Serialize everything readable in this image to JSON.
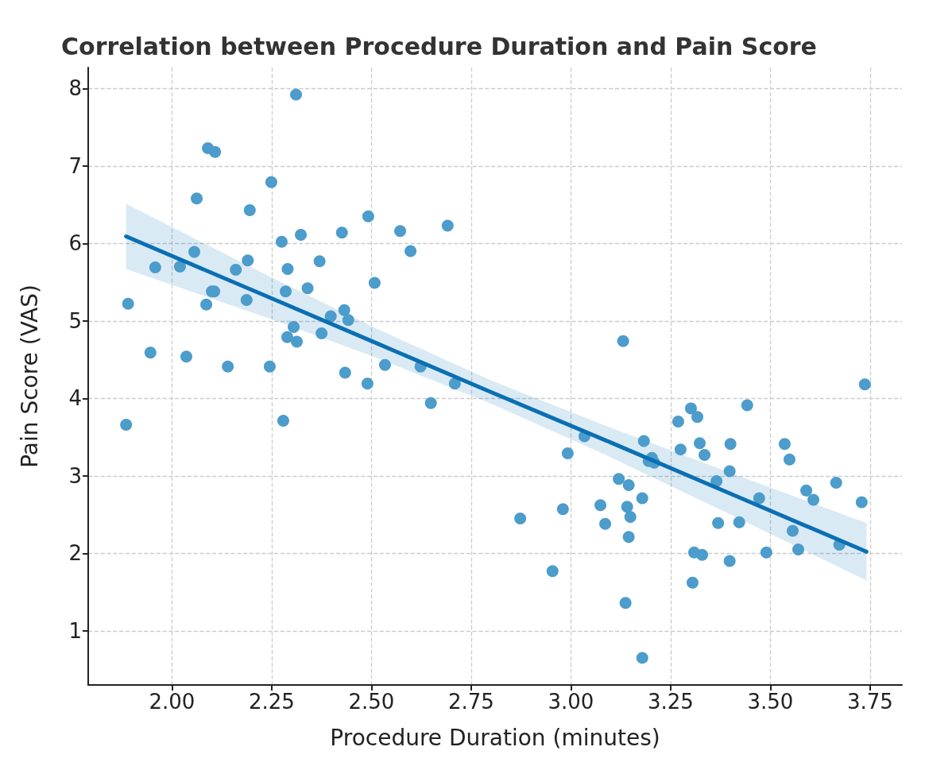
{
  "chart_data": {
    "type": "scatter",
    "title": "Correlation between Procedure Duration and Pain Score",
    "xlabel": "Procedure Duration (minutes)",
    "ylabel": "Pain Score (VAS)",
    "xlim": [
      1.79,
      3.83
    ],
    "ylim": [
      0.3,
      8.27
    ],
    "xticks": [
      {
        "value": 2,
        "label": "2.00"
      },
      {
        "value": 2.25,
        "label": "2.25"
      },
      {
        "value": 2.5,
        "label": "2.50"
      },
      {
        "value": 2.75,
        "label": "2.75"
      },
      {
        "value": 3,
        "label": "3.00"
      },
      {
        "value": 3.25,
        "label": "3.25"
      },
      {
        "value": 3.5,
        "label": "3.50"
      },
      {
        "value": 3.75,
        "label": "3.75"
      }
    ],
    "yticks": [
      1,
      2,
      3,
      4,
      5,
      6,
      7,
      8
    ],
    "grid": true,
    "series": [
      {
        "marker": "circle",
        "color": "#4c9ccc",
        "x": [
          1.885,
          1.89,
          1.946,
          1.958,
          2.02,
          2.036,
          2.056,
          2.062,
          2.086,
          2.09,
          2.108,
          2.1,
          2.106,
          2.14,
          2.16,
          2.187,
          2.19,
          2.195,
          2.245,
          2.249,
          2.275,
          2.279,
          2.285,
          2.29,
          2.289,
          2.305,
          2.311,
          2.313,
          2.323,
          2.34,
          2.37,
          2.375,
          2.398,
          2.426,
          2.432,
          2.434,
          2.442,
          2.49,
          2.492,
          2.508,
          2.534,
          2.572,
          2.598,
          2.623,
          2.649,
          2.691,
          2.709,
          2.873,
          2.954,
          2.98,
          2.992,
          3.034,
          3.074,
          3.086,
          3.12,
          3.131,
          3.137,
          3.141,
          3.145,
          3.145,
          3.149,
          3.179,
          3.179,
          3.183,
          3.195,
          3.203,
          3.209,
          3.269,
          3.275,
          3.301,
          3.305,
          3.309,
          3.317,
          3.323,
          3.329,
          3.335,
          3.365,
          3.369,
          3.398,
          3.4,
          3.398,
          3.422,
          3.442,
          3.472,
          3.49,
          3.536,
          3.548,
          3.556,
          3.57,
          3.59,
          3.608,
          3.665,
          3.673,
          3.729,
          3.737
        ],
        "values": [
          3.66,
          5.22,
          4.59,
          5.69,
          5.7,
          4.54,
          5.89,
          6.58,
          5.21,
          7.23,
          7.18,
          5.38,
          5.38,
          4.41,
          5.66,
          5.27,
          5.78,
          6.43,
          4.41,
          6.79,
          6.02,
          3.71,
          5.38,
          5.67,
          4.79,
          4.92,
          7.92,
          4.73,
          6.11,
          5.42,
          5.77,
          4.84,
          5.06,
          6.14,
          5.14,
          4.33,
          5.01,
          4.19,
          6.35,
          5.49,
          4.43,
          6.16,
          5.9,
          4.41,
          3.94,
          6.23,
          4.19,
          2.45,
          1.77,
          2.57,
          3.29,
          3.51,
          2.62,
          2.38,
          2.96,
          4.74,
          1.36,
          2.6,
          2.88,
          2.21,
          2.47,
          2.71,
          0.65,
          3.45,
          3.19,
          3.23,
          3.17,
          3.7,
          3.34,
          3.87,
          1.62,
          2.01,
          3.76,
          3.42,
          1.98,
          3.27,
          2.93,
          2.39,
          3.06,
          3.41,
          1.9,
          2.4,
          3.91,
          2.71,
          2.01,
          3.41,
          3.21,
          2.29,
          2.05,
          2.81,
          2.69,
          2.91,
          2.11,
          2.66,
          4.18
        ]
      },
      {
        "type": "line",
        "marker": "none",
        "color": "#0a6fb4",
        "x": [
          1.885,
          2.25,
          2.5,
          2.8,
          3.1,
          3.4,
          3.741
        ],
        "values": [
          6.09,
          5.29,
          4.74,
          4.08,
          3.43,
          2.77,
          2.02
        ],
        "lower": [
          5.67,
          5.02,
          4.55,
          3.93,
          3.24,
          2.5,
          1.65
        ],
        "upper": [
          6.51,
          5.56,
          4.93,
          4.23,
          3.62,
          3.04,
          2.39
        ]
      }
    ]
  }
}
